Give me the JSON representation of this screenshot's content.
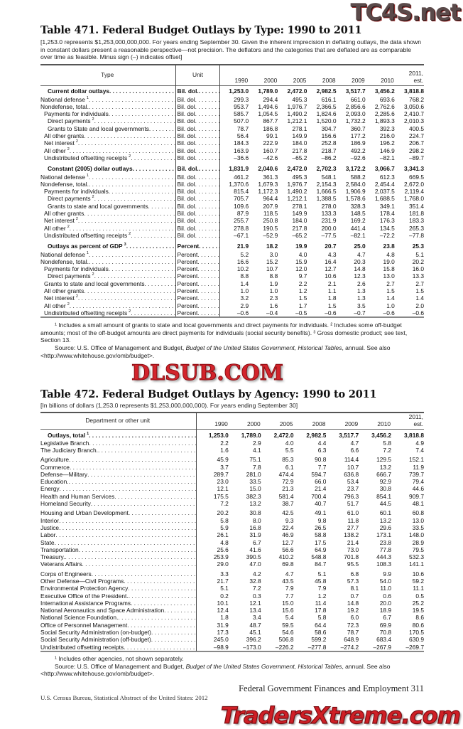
{
  "watermarks": {
    "top": "TC4S.net",
    "middle": "DLSUB.COM",
    "bottom": "TradersXtreme.com"
  },
  "table471": {
    "title": "Table 471. Federal Budget Outlays by Type: 1990 to 2011",
    "headnote": "[1,253.0 represents $1,253,000,000,000. For years ending September 30. Given the inherent imprecision in deflating outlays, the data shown in constant dollars present a reasonable perspective—not precision. The deflators and the categories that are deflated are as comparable over time as feasible. Minus sign (–) indicates offset]",
    "columns": {
      "label": "Type",
      "unit": "Unit",
      "years": [
        "1990",
        "2000",
        "2005",
        "2008",
        "2009",
        "2010",
        "2011, est."
      ]
    },
    "sections": [
      {
        "header": {
          "label": "Current dollar outlays",
          "unit": "Bil. dol.",
          "values": [
            "1,253.0",
            "1,789.0",
            "2,472.0",
            "2,982.5",
            "3,517.7",
            "3,456.2",
            "3,818.8"
          ]
        },
        "rows": [
          {
            "label": "National defense",
            "note": "1",
            "indent": 0,
            "unit": "Bil. dol",
            "values": [
              "299.3",
              "294.4",
              "495.3",
              "616.1",
              "661.0",
              "693.6",
              "768.2"
            ]
          },
          {
            "label": "Nondefense, total.",
            "indent": 0,
            "unit": "Bil. dol",
            "values": [
              "953.7",
              "1,494.6",
              "1,976.7",
              "2,366.5",
              "2,856.6",
              "2,762.6",
              "3,050.6"
            ]
          },
          {
            "label": "Payments for individuals",
            "indent": 1,
            "unit": "Bil. dol",
            "values": [
              "585.7",
              "1,054.5",
              "1,490.2",
              "1,824.6",
              "2,093.0",
              "2,285.6",
              "2,410.7"
            ]
          },
          {
            "label": "Direct payments",
            "note": "2",
            "indent": 2,
            "unit": "Bil. dol",
            "values": [
              "507.0",
              "867.7",
              "1,212.1",
              "1,520.0",
              "1,732.2",
              "1,893.3",
              "2,010.3"
            ]
          },
          {
            "label": "Grants to State and local governments",
            "indent": 2,
            "unit": "Bil. dol",
            "values": [
              "78.7",
              "186.8",
              "278.1",
              "304.7",
              "360.7",
              "392.3",
              "400.5"
            ]
          },
          {
            "label": "All other grants",
            "indent": 1,
            "unit": "Bil. dol",
            "values": [
              "56.4",
              "99.1",
              "149.9",
              "156.6",
              "177.2",
              "216.0",
              "224.7"
            ]
          },
          {
            "label": "Net interest",
            "note": "2",
            "indent": 1,
            "unit": "Bil. dol",
            "values": [
              "184.3",
              "222.9",
              "184.0",
              "252.8",
              "186.9",
              "196.2",
              "206.7"
            ]
          },
          {
            "label": "All other",
            "note": "2",
            "indent": 1,
            "unit": "Bil. dol",
            "values": [
              "163.9",
              "160.7",
              "217.8",
              "218.7",
              "492.2",
              "146.9",
              "298.2"
            ]
          },
          {
            "label": "Undistributed offsetting receipts",
            "note": "2",
            "indent": 1,
            "unit": "Bil. dol",
            "values": [
              "–36.6",
              "–42.6",
              "–65.2",
              "–86.2",
              "–92.6",
              "–82.1",
              "–89.7"
            ]
          }
        ]
      },
      {
        "header": {
          "label": "Constant (2005) dollar outlays",
          "unit": "Bil. dol.",
          "values": [
            "1,831.9",
            "2,040.6",
            "2,472.0",
            "2,702.3",
            "3,172.2",
            "3,066.7",
            "3,341.3"
          ]
        },
        "rows": [
          {
            "label": "National defense",
            "note": "1",
            "indent": 0,
            "unit": "Bil. dol",
            "values": [
              "461.2",
              "361.3",
              "495.3",
              "548.1",
              "588.2",
              "612.3",
              "669.5"
            ]
          },
          {
            "label": "Nondefense, total.",
            "indent": 0,
            "unit": "Bil. dol",
            "values": [
              "1,370.6",
              "1,679.3",
              "1,976.7",
              "2,154.3",
              "2,584.0",
              "2,454.4",
              "2,672.0"
            ]
          },
          {
            "label": "Payments for individuals",
            "indent": 1,
            "unit": "Bil. dol",
            "values": [
              "815.4",
              "1,172.3",
              "1,490.2",
              "1,666.5",
              "1,906.9",
              "2,037.5",
              "2,119.4"
            ]
          },
          {
            "label": "Direct payments",
            "note": "2",
            "indent": 2,
            "unit": "Bil. dol",
            "values": [
              "705.7",
              "964.4",
              "1,212.1",
              "1,388.5",
              "1,578.6",
              "1,688.5",
              "1,768.0"
            ]
          },
          {
            "label": "Grants to state and local governments",
            "indent": 2,
            "unit": "Bil. dol",
            "values": [
              "109.6",
              "207.9",
              "278.1",
              "278.0",
              "328.3",
              "349.1",
              "351.4"
            ]
          },
          {
            "label": "All other grants",
            "indent": 1,
            "unit": "Bil. dol",
            "values": [
              "87.9",
              "118.5",
              "149.9",
              "133.3",
              "148.5",
              "178.4",
              "181.8"
            ]
          },
          {
            "label": "Net interest",
            "note": "2",
            "indent": 1,
            "unit": "Bil. dol",
            "values": [
              "255.7",
              "250.8",
              "184.0",
              "231.9",
              "169.2",
              "176.3",
              "183.3"
            ]
          },
          {
            "label": "All other",
            "note": "2",
            "indent": 1,
            "unit": "Bil. dol",
            "values": [
              "278.8",
              "190.5",
              "217.8",
              "200.0",
              "441.4",
              "134.5",
              "265.3"
            ]
          },
          {
            "label": "Undistributed offsetting receipts",
            "note": "2",
            "indent": 1,
            "unit": "Bil. dol",
            "values": [
              "–67.1",
              "–52.9",
              "–65.2",
              "–77.5",
              "–82.1",
              "–72.2",
              "–77.8"
            ]
          }
        ]
      },
      {
        "header": {
          "label": "Outlays as percent of GDP",
          "note": "3",
          "unit": "Percent",
          "values": [
            "21.9",
            "18.2",
            "19.9",
            "20.7",
            "25.0",
            "23.8",
            "25.3"
          ]
        },
        "rows": [
          {
            "label": "National defense",
            "note": "1",
            "indent": 0,
            "unit": "Percent",
            "values": [
              "5.2",
              "3.0",
              "4.0",
              "4.3",
              "4.7",
              "4.8",
              "5.1"
            ]
          },
          {
            "label": "Nondefense, total.",
            "indent": 0,
            "unit": "Percent",
            "values": [
              "16.6",
              "15.2",
              "15.9",
              "16.4",
              "20.3",
              "19.0",
              "20.2"
            ]
          },
          {
            "label": "Payments for individuals",
            "indent": 1,
            "unit": "Percent",
            "values": [
              "10.2",
              "10.7",
              "12.0",
              "12.7",
              "14.8",
              "15.8",
              "16.0"
            ]
          },
          {
            "label": "Direct payments",
            "note": "2",
            "indent": 2,
            "unit": "Percent",
            "values": [
              "8.8",
              "8.8",
              "9.7",
              "10.6",
              "12.3",
              "13.0",
              "13.3"
            ]
          },
          {
            "label": "Grants to state and local governments",
            "indent": 1,
            "unit": "Percent",
            "values": [
              "1.4",
              "1.9",
              "2.2",
              "2.1",
              "2.6",
              "2.7",
              "2.7"
            ]
          },
          {
            "label": "All other grants",
            "indent": 1,
            "unit": "Percent",
            "values": [
              "1.0",
              "1.0",
              "1.2",
              "1.1",
              "1.3",
              "1.5",
              "1.5"
            ]
          },
          {
            "label": "Net interest",
            "note": "2",
            "indent": 1,
            "unit": "Percent",
            "values": [
              "3.2",
              "2.3",
              "1.5",
              "1.8",
              "1.3",
              "1.4",
              "1.4"
            ]
          },
          {
            "label": "All other",
            "note": "2",
            "indent": 1,
            "unit": "Percent",
            "values": [
              "2.9",
              "1.6",
              "1.7",
              "1.5",
              "3.5",
              "1.0",
              "2.0"
            ]
          },
          {
            "label": "Undistributed offsetting receipts",
            "note": "2",
            "indent": 1,
            "unit": "Percent",
            "values": [
              "–0.6",
              "–0.4",
              "–0.5",
              "–0.6",
              "–0.7",
              "–0.6",
              "–0.6"
            ]
          }
        ]
      }
    ],
    "footnotes": "¹ Includes a small amount of grants to state and local governments and direct  payments for individuals. ² Includes some off-budget amounts; most of the off-budget amounts are direct  payments for individuals (social security benefits). ³ Gross domestic product; see text, Section 13.",
    "source_prefix": "Source: U.S. Office of Management and Budget, ",
    "source_title": "Budget of the United States Government, Historical Tables",
    "source_suffix": ", annual. See also <http://www.whitehouse.gov/omb/budget>."
  },
  "table472": {
    "title": "Table 472. Federal Budget Outlays by Agency: 1990 to 2011",
    "headnote": "[In billions of dollars (1,253.0 represents $1,253,000,000,000). For years ending September 30]",
    "columns": {
      "label": "Department or other unit",
      "years": [
        "1990",
        "2000",
        "2005",
        "2008",
        "2009",
        "2010",
        "2011, est."
      ]
    },
    "groups": [
      [
        {
          "label": "Outlays, total",
          "note": "1",
          "bold": true,
          "values": [
            "1,253.0",
            "1,789.0",
            "2,472.0",
            "2,982.5",
            "3,517.7",
            "3,456.2",
            "3,818.8"
          ]
        },
        {
          "label": "Legislative Branch",
          "values": [
            "2.2",
            "2.9",
            "4.0",
            "4.4",
            "4.7",
            "5.8",
            "4.9"
          ]
        },
        {
          "label": "The Judiciary Branch.",
          "values": [
            "1.6",
            "4.1",
            "5.5",
            "6.3",
            "6.6",
            "7.2",
            "7.4"
          ]
        }
      ],
      [
        {
          "label": "Agriculture",
          "values": [
            "45.9",
            "75.1",
            "85.3",
            "90.8",
            "114.4",
            "129.5",
            "152.1"
          ]
        },
        {
          "label": "Commerce",
          "values": [
            "3.7",
            "7.8",
            "6.1",
            "7.7",
            "10.7",
            "13.2",
            "11.9"
          ]
        },
        {
          "label": "Defense—Military",
          "values": [
            "289.7",
            "281.0",
            "474.4",
            "594.7",
            "636.8",
            "666.7",
            "739.7"
          ]
        },
        {
          "label": "Education.",
          "values": [
            "23.0",
            "33.5",
            "72.9",
            "66.0",
            "53.4",
            "92.9",
            "79.4"
          ]
        },
        {
          "label": "Energy",
          "values": [
            "12.1",
            "15.0",
            "21.3",
            "21.4",
            "23.7",
            "30.8",
            "44.6"
          ]
        },
        {
          "label": "Health and Human Services",
          "values": [
            "175.5",
            "382.3",
            "581.4",
            "700.4",
            "796.3",
            "854.1",
            "909.7"
          ]
        },
        {
          "label": "Homeland Security",
          "values": [
            "7.2",
            "13.2",
            "38.7",
            "40.7",
            "51.7",
            "44.5",
            "48.1"
          ]
        }
      ],
      [
        {
          "label": "Housing and Urban Development",
          "values": [
            "20.2",
            "30.8",
            "42.5",
            "49.1",
            "61.0",
            "60.1",
            "60.8"
          ]
        },
        {
          "label": "Interior",
          "values": [
            "5.8",
            "8.0",
            "9.3",
            "9.8",
            "11.8",
            "13.2",
            "13.0"
          ]
        },
        {
          "label": "Justice",
          "values": [
            "5.9",
            "16.8",
            "22.4",
            "26.5",
            "27.7",
            "29.6",
            "33.5"
          ]
        },
        {
          "label": "Labor",
          "values": [
            "26.1",
            "31.9",
            "46.9",
            "58.8",
            "138.2",
            "173.1",
            "148.0"
          ]
        },
        {
          "label": "State",
          "values": [
            "4.8",
            "6.7",
            "12.7",
            "17.5",
            "21.4",
            "23.8",
            "28.9"
          ]
        },
        {
          "label": "Transportation",
          "values": [
            "25.6",
            "41.6",
            "56.6",
            "64.9",
            "73.0",
            "77.8",
            "79.5"
          ]
        },
        {
          "label": "Treasury.",
          "values": [
            "253.9",
            "390.5",
            "410.2",
            "548.8",
            "701.8",
            "444.3",
            "532.3"
          ]
        },
        {
          "label": "Veterans Affairs",
          "values": [
            "29.0",
            "47.0",
            "69.8",
            "84.7",
            "95.5",
            "108.3",
            "141.1"
          ]
        }
      ],
      [
        {
          "label": "Corps of Engineers",
          "values": [
            "3.3",
            "4.2",
            "4.7",
            "5.1",
            "6.8",
            "9.9",
            "10.6"
          ]
        },
        {
          "label": "Other Defense—Civil Programs",
          "values": [
            "21.7",
            "32.8",
            "43.5",
            "45.8",
            "57.3",
            "54.0",
            "59.2"
          ]
        },
        {
          "label": "Environmental Protection Agency",
          "values": [
            "5.1",
            "7.2",
            "7.9",
            "7.9",
            "8.1",
            "11.0",
            "11.1"
          ]
        },
        {
          "label": "Executive Office of the President.",
          "values": [
            "0.2",
            "0.3",
            "7.7",
            "1.2",
            "0.7",
            "0.6",
            "0.5"
          ]
        },
        {
          "label": "International Assistance Programs",
          "values": [
            "10.1",
            "12.1",
            "15.0",
            "11.4",
            "14.8",
            "20.0",
            "25.2"
          ]
        },
        {
          "label": "National Aeronautics and Space Administration",
          "values": [
            "12.4",
            "13.4",
            "15.6",
            "17.8",
            "19.2",
            "18.9",
            "19.5"
          ]
        },
        {
          "label": "National Science Foundation.",
          "values": [
            "1.8",
            "3.4",
            "5.4",
            "5.8",
            "6.0",
            "6.7",
            "8.6"
          ]
        },
        {
          "label": "Office of Personnel Management",
          "values": [
            "31.9",
            "48.7",
            "59.5",
            "64.4",
            "72.3",
            "69.9",
            "80.6"
          ]
        },
        {
          "label": "Social Security Administration (on-budget)",
          "values": [
            "17.3",
            "45.1",
            "54.6",
            "58.6",
            "78.7",
            "70.8",
            "170.5"
          ]
        },
        {
          "label": "Social Security Administration (off-budget)",
          "values": [
            "245.0",
            "396.2",
            "506.8",
            "599.2",
            "648.9",
            "683.4",
            "630.9"
          ]
        },
        {
          "label": "Undistributed offsetting receipts",
          "values": [
            "–98.9",
            "–173.0",
            "–226.2",
            "–277.8",
            "–274.2",
            "–267.9",
            "–269.7"
          ]
        }
      ]
    ],
    "footnotes": "¹ Includes other agencies, not shown separately.",
    "source_prefix": "Source: U.S. Office of Management and Budget, ",
    "source_title": "Budget of the United States Government, Historical Tables",
    "source_suffix": ", annual. See also <http://www.whitehouse.gov/omb/budget>."
  },
  "footer": {
    "chapter": "Federal Government Finances and Employment   311",
    "publication": "U.S. Census Bureau, Statistical Abstract of the United States: 2012"
  }
}
